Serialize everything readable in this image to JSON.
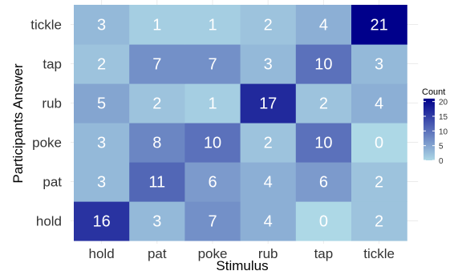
{
  "chart_data": {
    "type": "heatmap",
    "title": "",
    "xlabel": "Stimulus",
    "ylabel": "Participants Answer",
    "x_categories": [
      "hold",
      "pat",
      "poke",
      "rub",
      "tap",
      "tickle"
    ],
    "y_categories": [
      "hold",
      "pat",
      "poke",
      "rub",
      "tap",
      "tickle"
    ],
    "values": [
      [
        16,
        3,
        7,
        4,
        0,
        2
      ],
      [
        3,
        11,
        6,
        4,
        6,
        2
      ],
      [
        3,
        8,
        10,
        2,
        10,
        0
      ],
      [
        5,
        2,
        1,
        17,
        2,
        4
      ],
      [
        2,
        7,
        7,
        3,
        10,
        3
      ],
      [
        3,
        1,
        1,
        2,
        4,
        21
      ]
    ],
    "value_range": [
      0,
      21
    ],
    "color_low": "#add8e6",
    "color_high": "#00008b",
    "legend": {
      "title": "Count",
      "ticks": [
        0,
        5,
        10,
        15,
        20
      ],
      "tick_labels": [
        "0",
        "5",
        "10",
        "15",
        "20"
      ],
      "position": "right"
    },
    "grid": true
  }
}
